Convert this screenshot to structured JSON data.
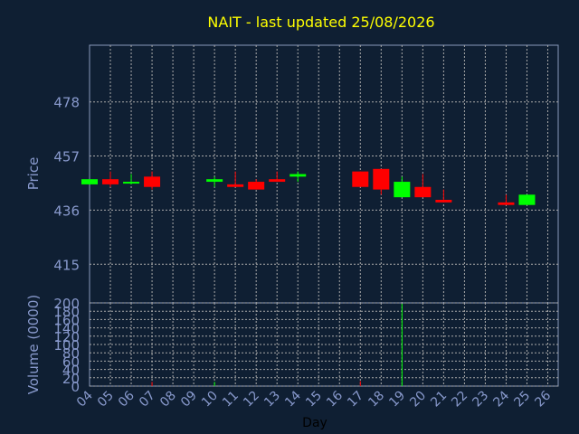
{
  "chart_data": [
    {
      "type": "candlestick",
      "title": "NAIT - last updated 25/08/2026",
      "ylabel": "Price",
      "xlabel": "",
      "ylim": [
        400,
        500
      ],
      "yticks": [
        415,
        436,
        457,
        478
      ],
      "grid": true,
      "up_color": "#00ff00",
      "down_color": "#ff0000",
      "candles": [
        {
          "x": "04",
          "open": 446,
          "high": 448,
          "low": 446,
          "close": 448
        },
        {
          "x": "05",
          "open": 448,
          "high": 451,
          "low": 445,
          "close": 446
        },
        {
          "x": "06",
          "open": 447,
          "high": 450,
          "low": 446,
          "close": 447
        },
        {
          "x": "07",
          "open": 449,
          "high": 451,
          "low": 444,
          "close": 445
        },
        {
          "x": "10",
          "open": 447,
          "high": 449,
          "low": 445,
          "close": 448
        },
        {
          "x": "11",
          "open": 446,
          "high": 451,
          "low": 445,
          "close": 445
        },
        {
          "x": "12",
          "open": 447,
          "high": 448,
          "low": 444,
          "close": 444
        },
        {
          "x": "13",
          "open": 448,
          "high": 451,
          "low": 447,
          "close": 447
        },
        {
          "x": "14",
          "open": 449,
          "high": 451,
          "low": 447,
          "close": 450
        },
        {
          "x": "17",
          "open": 451,
          "high": 451,
          "low": 445,
          "close": 445
        },
        {
          "x": "18",
          "open": 452,
          "high": 452,
          "low": 442,
          "close": 444
        },
        {
          "x": "19",
          "open": 441,
          "high": 449,
          "low": 441,
          "close": 447
        },
        {
          "x": "20",
          "open": 445,
          "high": 450,
          "low": 441,
          "close": 441
        },
        {
          "x": "21",
          "open": 440,
          "high": 444,
          "low": 439,
          "close": 439
        },
        {
          "x": "24",
          "open": 439,
          "high": 442,
          "low": 438,
          "close": 438
        },
        {
          "x": "25",
          "open": 438,
          "high": 442,
          "low": 438,
          "close": 442
        }
      ]
    },
    {
      "type": "bar",
      "ylabel": "Volume (0000)",
      "xlabel": "Day",
      "ylim": [
        0,
        200
      ],
      "yticks": [
        0,
        20,
        40,
        60,
        80,
        100,
        120,
        140,
        160,
        180,
        200
      ],
      "grid": true,
      "categories": [
        "04",
        "05",
        "06",
        "07",
        "08",
        "09",
        "10",
        "11",
        "12",
        "13",
        "14",
        "15",
        "16",
        "17",
        "18",
        "19",
        "20",
        "21",
        "22",
        "23",
        "24",
        "25",
        "26"
      ],
      "values": [
        0,
        0,
        0,
        10,
        0,
        0,
        10,
        0,
        0,
        0,
        0,
        0,
        0,
        12,
        0,
        198,
        0,
        0,
        0,
        0,
        0,
        0,
        0
      ],
      "bar_colors": [
        "#00ff00",
        "#ff0000",
        "#00ff00",
        "#ff0000",
        "#888888",
        "#888888",
        "#00ff00",
        "#ff0000",
        "#ff0000",
        "#ff0000",
        "#00ff00",
        "#888888",
        "#888888",
        "#ff0000",
        "#ff0000",
        "#00ff00",
        "#ff0000",
        "#ff0000",
        "#888888",
        "#888888",
        "#ff0000",
        "#00ff00",
        "#888888"
      ]
    }
  ],
  "colors": {
    "background": "#0f1f33",
    "plot_border": "#8899bb",
    "grid": "#aaaaaa",
    "title": "#ffff00",
    "axis_text": "#8899cc"
  }
}
